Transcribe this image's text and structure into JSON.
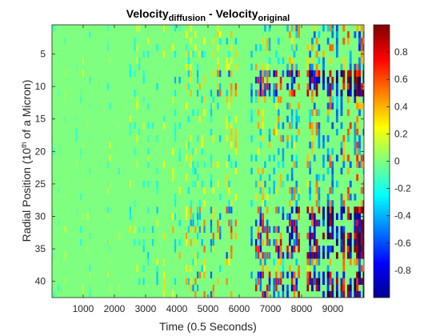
{
  "chart_data": {
    "type": "heatmap",
    "title": {
      "main_a": "Velocity",
      "sub_a": "diffusion",
      "dash": " - Velocity",
      "sub_b": "original"
    },
    "xlabel": "Time (0.5 Seconds)",
    "ylabel": {
      "prefix": "Radial Position (10",
      "sup": "th",
      "suffix": " of a Micron)"
    },
    "xlim": [
      1,
      10000
    ],
    "ylim": [
      1,
      42
    ],
    "x_ticks": [
      1000,
      2000,
      3000,
      4000,
      5000,
      6000,
      7000,
      8000,
      9000
    ],
    "x_tick_labels": [
      "1000",
      "2000",
      "3000",
      "4000",
      "5000",
      "6000",
      "7000",
      "8000",
      "9000"
    ],
    "y_ticks": [
      5,
      10,
      15,
      20,
      25,
      30,
      35,
      40
    ],
    "y_tick_labels": [
      "5",
      "10",
      "15",
      "20",
      "25",
      "30",
      "35",
      "40"
    ],
    "y_reversed": true,
    "colormap": "jet",
    "clim": [
      -1,
      1
    ],
    "background_value": 0.06,
    "colorbar": {
      "ticks": [
        0.8,
        0.6,
        0.4,
        0.2,
        0,
        -0.2,
        -0.4,
        -0.6,
        -0.8
      ],
      "tick_labels": [
        "0.8",
        "0.6",
        "0.4",
        "0.2",
        "0",
        "-0.2",
        "-0.4",
        "-0.6",
        "-0.8"
      ],
      "location": "right"
    },
    "strong_rows": [
      8,
      9,
      10,
      11,
      29,
      30,
      31,
      32,
      33,
      34,
      35,
      36,
      39,
      40,
      41,
      42
    ],
    "pattern_note": "vertical stripe pattern: near-zero differences at early times, growing to alternating +/-1 bands at late times and near rows 9-11 and 30-36"
  }
}
